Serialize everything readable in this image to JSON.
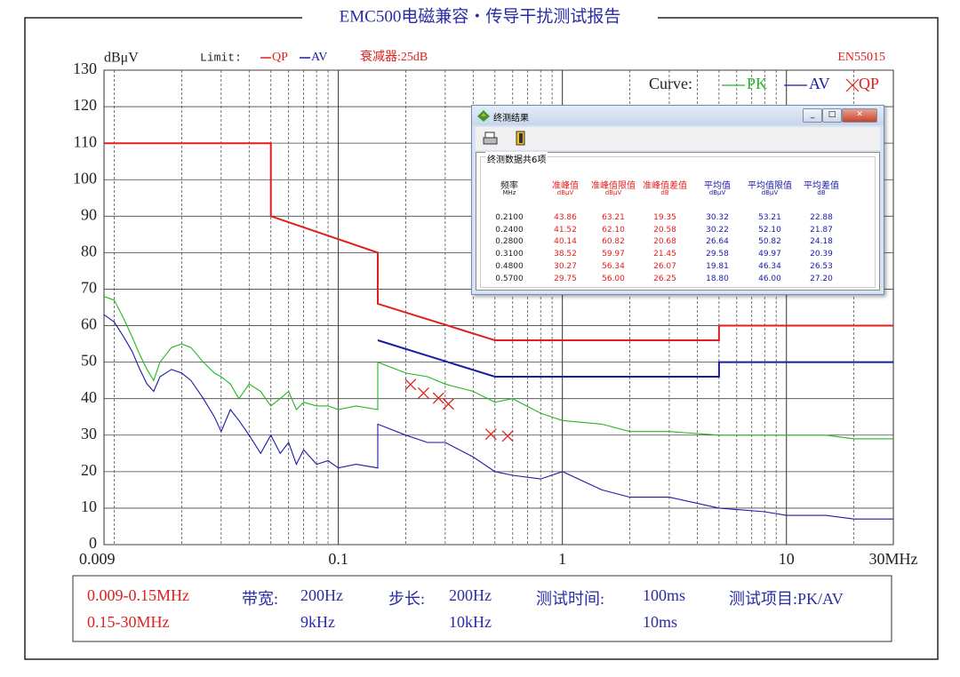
{
  "chart_data": {
    "type": "line",
    "title": "EMC500电磁兼容・传导干扰测试报告",
    "y_label": "dBμV",
    "limit_label": "Limit:",
    "attenuator": "衰减器:25dB",
    "standard": "EN55015",
    "curve_label": "Curve:",
    "xscale": "log",
    "grid": true,
    "xlim": [
      0.009,
      30
    ],
    "ylim": [
      0,
      130
    ],
    "xticks": [
      0.009,
      0.1,
      1,
      10,
      {
        "value": 30,
        "label": "30MHz"
      }
    ],
    "yticks": [
      0,
      10,
      20,
      30,
      40,
      50,
      60,
      70,
      80,
      90,
      100,
      110,
      120,
      130
    ],
    "xgrid_minor": [
      0.01,
      0.02,
      0.03,
      0.04,
      0.05,
      0.06,
      0.07,
      0.08,
      0.09,
      0.2,
      0.3,
      0.4,
      0.5,
      0.6,
      0.7,
      0.8,
      0.9,
      2,
      3,
      4,
      5,
      6,
      7,
      8,
      9,
      20
    ],
    "series": [
      {
        "name": "QP",
        "group": "limit",
        "kind": "line",
        "color": "#e0201c",
        "x": [
          0.009,
          0.05,
          0.05,
          0.15,
          0.15,
          0.5,
          5,
          5,
          30
        ],
        "values": [
          110,
          110,
          90,
          80,
          66,
          56,
          56,
          60,
          60
        ]
      },
      {
        "name": "AV",
        "group": "limit",
        "kind": "line",
        "color": "#1a1aa8",
        "x": [
          0.15,
          0.5,
          5,
          5,
          30
        ],
        "values": [
          56,
          46,
          46,
          50,
          50
        ]
      },
      {
        "name": "PK",
        "group": "curve",
        "kind": "line",
        "color": "#22b822",
        "x": [
          0.009,
          0.01,
          0.011,
          0.012,
          0.013,
          0.014,
          0.015,
          0.016,
          0.018,
          0.02,
          0.022,
          0.025,
          0.028,
          0.03,
          0.033,
          0.036,
          0.04,
          0.045,
          0.05,
          0.055,
          0.06,
          0.065,
          0.07,
          0.08,
          0.09,
          0.1,
          0.12,
          0.15,
          0.15,
          0.2,
          0.25,
          0.3,
          0.4,
          0.5,
          0.6,
          0.8,
          1,
          1.5,
          2,
          3,
          5,
          8,
          10,
          15,
          20,
          30
        ],
        "values": [
          68,
          67,
          62,
          57,
          52,
          48,
          45,
          50,
          54,
          55,
          54,
          50,
          47,
          46,
          44,
          40,
          44,
          42,
          38,
          40,
          42,
          37,
          39,
          38,
          38,
          37,
          38,
          37,
          50,
          47,
          46,
          44,
          42,
          39,
          40,
          36,
          34,
          33,
          31,
          31,
          30,
          30,
          30,
          30,
          29,
          29
        ]
      },
      {
        "name": "AV",
        "group": "curve",
        "kind": "line",
        "color": "#1a1aa8",
        "x": [
          0.009,
          0.01,
          0.011,
          0.012,
          0.013,
          0.014,
          0.015,
          0.016,
          0.018,
          0.02,
          0.022,
          0.025,
          0.028,
          0.03,
          0.033,
          0.036,
          0.04,
          0.045,
          0.05,
          0.055,
          0.06,
          0.065,
          0.07,
          0.08,
          0.09,
          0.1,
          0.12,
          0.15,
          0.15,
          0.2,
          0.25,
          0.3,
          0.4,
          0.5,
          0.6,
          0.8,
          1,
          1.5,
          2,
          3,
          5,
          8,
          10,
          15,
          20,
          30
        ],
        "values": [
          63,
          61,
          57,
          53,
          48,
          44,
          42,
          46,
          48,
          47,
          45,
          40,
          35,
          31,
          37,
          34,
          30,
          25,
          30,
          25,
          28,
          22,
          26,
          22,
          23,
          21,
          22,
          21,
          33,
          30,
          28,
          28,
          24,
          20,
          19,
          18,
          20,
          15,
          13,
          13,
          10,
          9,
          8,
          8,
          7,
          7
        ]
      },
      {
        "name": "QP",
        "group": "curve",
        "kind": "cross",
        "color": "#e0201c",
        "x": [
          0.21,
          0.24,
          0.28,
          0.31,
          0.48,
          0.57
        ],
        "values": [
          43.86,
          41.52,
          40.14,
          38.52,
          30.27,
          29.75
        ]
      }
    ]
  },
  "result_window": {
    "title": "终测结果",
    "count": "终测数据共6项",
    "columns": [
      [
        "频率",
        "MHz"
      ],
      [
        "准峰值",
        "dBμV"
      ],
      [
        "准峰值限值",
        "dBμV"
      ],
      [
        "准峰值差值",
        "dB"
      ],
      [
        "平均值",
        "dBμV"
      ],
      [
        "平均值限值",
        "dBμV"
      ],
      [
        "平均差值",
        "dB"
      ]
    ],
    "rows": [
      [
        "0.2100",
        "43.86",
        "63.21",
        "19.35",
        "30.32",
        "53.21",
        "22.88"
      ],
      [
        "0.2400",
        "41.52",
        "62.10",
        "20.58",
        "30.22",
        "52.10",
        "21.87"
      ],
      [
        "0.2800",
        "40.14",
        "60.82",
        "20.68",
        "26.64",
        "50.82",
        "24.18"
      ],
      [
        "0.3100",
        "38.52",
        "59.97",
        "21.45",
        "29.58",
        "49.97",
        "20.39"
      ],
      [
        "0.4800",
        "30.27",
        "56.34",
        "26.07",
        "19.81",
        "46.34",
        "26.53"
      ],
      [
        "0.5700",
        "29.75",
        "56.00",
        "26.25",
        "18.80",
        "46.00",
        "27.20"
      ]
    ]
  },
  "settings": {
    "row1": [
      "0.009-0.15MHz",
      "带宽:",
      "200Hz",
      "步长:",
      "200Hz",
      "测试时间:",
      "100ms",
      "测试项目:PK/AV"
    ],
    "row2": [
      "0.15-30MHz",
      "9kHz",
      "10kHz",
      "10ms"
    ]
  }
}
